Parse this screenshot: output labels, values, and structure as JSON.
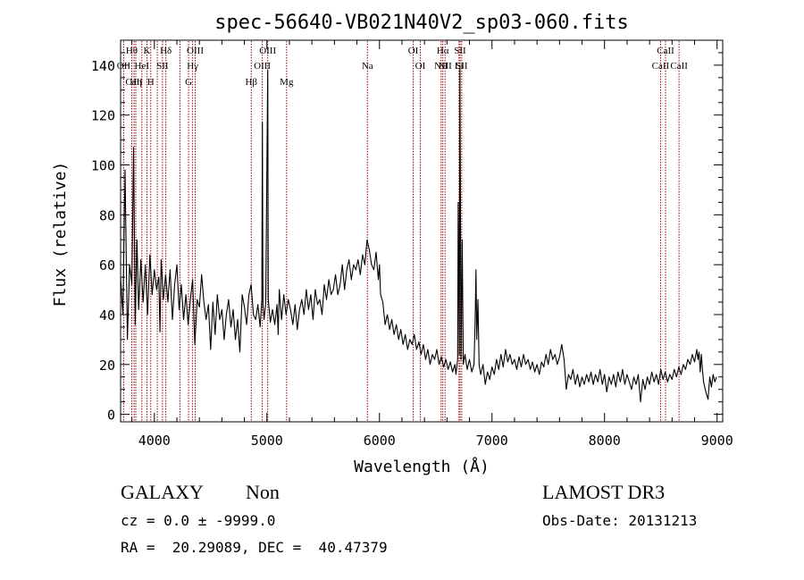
{
  "chart_data": {
    "type": "line",
    "title": "spec-56640-VB021N40V2_sp03-060.fits",
    "xlabel": "Wavelength (Å)",
    "ylabel": "Flux (relative)",
    "xlim": [
      3700,
      9050
    ],
    "ylim": [
      -3,
      150
    ],
    "xticks": [
      4000,
      5000,
      6000,
      7000,
      8000,
      9000
    ],
    "yticks": [
      0,
      20,
      40,
      60,
      80,
      100,
      120,
      140
    ],
    "line_color": "#000000",
    "marker_color": "#a00000",
    "series": [
      {
        "points": [
          [
            3700,
            55
          ],
          [
            3720,
            40
          ],
          [
            3740,
            98
          ],
          [
            3760,
            30
          ],
          [
            3780,
            60
          ],
          [
            3800,
            52
          ],
          [
            3815,
            107
          ],
          [
            3830,
            36
          ],
          [
            3845,
            70
          ],
          [
            3860,
            42
          ],
          [
            3880,
            62
          ],
          [
            3900,
            45
          ],
          [
            3920,
            60
          ],
          [
            3940,
            40
          ],
          [
            3960,
            64
          ],
          [
            3980,
            48
          ],
          [
            4000,
            58
          ],
          [
            4020,
            50
          ],
          [
            4040,
            55
          ],
          [
            4050,
            33
          ],
          [
            4060,
            62
          ],
          [
            4080,
            46
          ],
          [
            4100,
            56
          ],
          [
            4120,
            45
          ],
          [
            4140,
            58
          ],
          [
            4160,
            38
          ],
          [
            4180,
            52
          ],
          [
            4200,
            60
          ],
          [
            4220,
            42
          ],
          [
            4240,
            52
          ],
          [
            4260,
            38
          ],
          [
            4280,
            48
          ],
          [
            4300,
            36
          ],
          [
            4320,
            46
          ],
          [
            4340,
            54
          ],
          [
            4360,
            28
          ],
          [
            4380,
            46
          ],
          [
            4400,
            43
          ],
          [
            4420,
            56
          ],
          [
            4440,
            45
          ],
          [
            4460,
            38
          ],
          [
            4480,
            44
          ],
          [
            4500,
            26
          ],
          [
            4520,
            45
          ],
          [
            4540,
            32
          ],
          [
            4560,
            48
          ],
          [
            4580,
            38
          ],
          [
            4600,
            42
          ],
          [
            4620,
            30
          ],
          [
            4640,
            40
          ],
          [
            4660,
            46
          ],
          [
            4680,
            35
          ],
          [
            4700,
            42
          ],
          [
            4720,
            30
          ],
          [
            4740,
            38
          ],
          [
            4760,
            25
          ],
          [
            4780,
            48
          ],
          [
            4800,
            43
          ],
          [
            4820,
            36
          ],
          [
            4840,
            48
          ],
          [
            4860,
            52
          ],
          [
            4880,
            40
          ],
          [
            4900,
            38
          ],
          [
            4920,
            44
          ],
          [
            4940,
            35
          ],
          [
            4955,
            46
          ],
          [
            4960,
            117
          ],
          [
            4965,
            44
          ],
          [
            4975,
            38
          ],
          [
            4990,
            45
          ],
          [
            5007,
            138
          ],
          [
            5012,
            46
          ],
          [
            5030,
            37
          ],
          [
            5050,
            42
          ],
          [
            5070,
            36
          ],
          [
            5090,
            44
          ],
          [
            5100,
            32
          ],
          [
            5110,
            50
          ],
          [
            5130,
            38
          ],
          [
            5150,
            48
          ],
          [
            5170,
            40
          ],
          [
            5190,
            46
          ],
          [
            5210,
            42
          ],
          [
            5230,
            36
          ],
          [
            5250,
            44
          ],
          [
            5270,
            34
          ],
          [
            5290,
            42
          ],
          [
            5310,
            46
          ],
          [
            5330,
            40
          ],
          [
            5350,
            50
          ],
          [
            5370,
            42
          ],
          [
            5390,
            48
          ],
          [
            5410,
            38
          ],
          [
            5430,
            50
          ],
          [
            5450,
            44
          ],
          [
            5470,
            46
          ],
          [
            5490,
            40
          ],
          [
            5510,
            52
          ],
          [
            5530,
            46
          ],
          [
            5550,
            54
          ],
          [
            5570,
            48
          ],
          [
            5590,
            50
          ],
          [
            5610,
            56
          ],
          [
            5630,
            48
          ],
          [
            5650,
            52
          ],
          [
            5670,
            60
          ],
          [
            5690,
            50
          ],
          [
            5710,
            58
          ],
          [
            5730,
            62
          ],
          [
            5750,
            54
          ],
          [
            5770,
            60
          ],
          [
            5790,
            58
          ],
          [
            5810,
            62
          ],
          [
            5830,
            56
          ],
          [
            5850,
            64
          ],
          [
            5870,
            60
          ],
          [
            5890,
            70
          ],
          [
            5910,
            66
          ],
          [
            5930,
            60
          ],
          [
            5950,
            58
          ],
          [
            5970,
            65
          ],
          [
            5990,
            54
          ],
          [
            6000,
            60
          ],
          [
            6010,
            48
          ],
          [
            6030,
            45
          ],
          [
            6050,
            36
          ],
          [
            6070,
            40
          ],
          [
            6090,
            34
          ],
          [
            6110,
            38
          ],
          [
            6130,
            32
          ],
          [
            6150,
            36
          ],
          [
            6170,
            30
          ],
          [
            6190,
            34
          ],
          [
            6210,
            28
          ],
          [
            6230,
            32
          ],
          [
            6250,
            26
          ],
          [
            6270,
            30
          ],
          [
            6290,
            28
          ],
          [
            6310,
            32
          ],
          [
            6330,
            26
          ],
          [
            6350,
            29
          ],
          [
            6370,
            24
          ],
          [
            6390,
            28
          ],
          [
            6410,
            22
          ],
          [
            6430,
            26
          ],
          [
            6450,
            20
          ],
          [
            6470,
            24
          ],
          [
            6490,
            22
          ],
          [
            6510,
            26
          ],
          [
            6530,
            20
          ],
          [
            6550,
            23
          ],
          [
            6570,
            19
          ],
          [
            6590,
            22
          ],
          [
            6610,
            18
          ],
          [
            6630,
            21
          ],
          [
            6650,
            17
          ],
          [
            6670,
            20
          ],
          [
            6680,
            16
          ],
          [
            6695,
            22
          ],
          [
            6700,
            85
          ],
          [
            6710,
            24
          ],
          [
            6715,
            140
          ],
          [
            6725,
            22
          ],
          [
            6735,
            70
          ],
          [
            6745,
            20
          ],
          [
            6760,
            24
          ],
          [
            6780,
            18
          ],
          [
            6800,
            22
          ],
          [
            6820,
            17
          ],
          [
            6840,
            20
          ],
          [
            6850,
            36
          ],
          [
            6858,
            58
          ],
          [
            6865,
            30
          ],
          [
            6875,
            46
          ],
          [
            6885,
            20
          ],
          [
            6900,
            16
          ],
          [
            6920,
            20
          ],
          [
            6940,
            12
          ],
          [
            6960,
            17
          ],
          [
            6980,
            14
          ],
          [
            7000,
            19
          ],
          [
            7020,
            16
          ],
          [
            7040,
            22
          ],
          [
            7060,
            18
          ],
          [
            7080,
            24
          ],
          [
            7100,
            19
          ],
          [
            7120,
            26
          ],
          [
            7140,
            21
          ],
          [
            7160,
            24
          ],
          [
            7180,
            20
          ],
          [
            7200,
            22
          ],
          [
            7220,
            18
          ],
          [
            7240,
            23
          ],
          [
            7260,
            19
          ],
          [
            7280,
            24
          ],
          [
            7300,
            20
          ],
          [
            7320,
            22
          ],
          [
            7340,
            18
          ],
          [
            7360,
            21
          ],
          [
            7380,
            17
          ],
          [
            7400,
            20
          ],
          [
            7420,
            16
          ],
          [
            7440,
            21
          ],
          [
            7460,
            19
          ],
          [
            7480,
            24
          ],
          [
            7500,
            20
          ],
          [
            7520,
            26
          ],
          [
            7540,
            22
          ],
          [
            7560,
            24
          ],
          [
            7580,
            20
          ],
          [
            7600,
            23
          ],
          [
            7620,
            28
          ],
          [
            7640,
            22
          ],
          [
            7660,
            10
          ],
          [
            7680,
            16
          ],
          [
            7700,
            14
          ],
          [
            7720,
            18
          ],
          [
            7740,
            12
          ],
          [
            7760,
            16
          ],
          [
            7780,
            11
          ],
          [
            7800,
            15
          ],
          [
            7820,
            12
          ],
          [
            7840,
            16
          ],
          [
            7860,
            13
          ],
          [
            7880,
            17
          ],
          [
            7900,
            12
          ],
          [
            7920,
            16
          ],
          [
            7940,
            13
          ],
          [
            7960,
            18
          ],
          [
            7980,
            12
          ],
          [
            8000,
            16
          ],
          [
            8020,
            9
          ],
          [
            8040,
            15
          ],
          [
            8060,
            12
          ],
          [
            8080,
            16
          ],
          [
            8100,
            11
          ],
          [
            8120,
            17
          ],
          [
            8140,
            13
          ],
          [
            8160,
            18
          ],
          [
            8180,
            12
          ],
          [
            8200,
            16
          ],
          [
            8220,
            13
          ],
          [
            8240,
            10
          ],
          [
            8260,
            15
          ],
          [
            8280,
            12
          ],
          [
            8300,
            16
          ],
          [
            8320,
            5
          ],
          [
            8340,
            14
          ],
          [
            8360,
            10
          ],
          [
            8380,
            15
          ],
          [
            8400,
            12
          ],
          [
            8420,
            17
          ],
          [
            8440,
            13
          ],
          [
            8460,
            16
          ],
          [
            8480,
            12
          ],
          [
            8500,
            18
          ],
          [
            8520,
            14
          ],
          [
            8540,
            17
          ],
          [
            8560,
            13
          ],
          [
            8580,
            16
          ],
          [
            8600,
            14
          ],
          [
            8620,
            18
          ],
          [
            8640,
            15
          ],
          [
            8660,
            19
          ],
          [
            8680,
            16
          ],
          [
            8700,
            20
          ],
          [
            8720,
            18
          ],
          [
            8740,
            22
          ],
          [
            8760,
            20
          ],
          [
            8780,
            24
          ],
          [
            8800,
            21
          ],
          [
            8820,
            26
          ],
          [
            8830,
            22
          ],
          [
            8840,
            25
          ],
          [
            8850,
            17
          ],
          [
            8860,
            24
          ],
          [
            8870,
            18
          ],
          [
            8880,
            13
          ],
          [
            8890,
            11
          ],
          [
            8900,
            9
          ],
          [
            8920,
            6
          ],
          [
            8935,
            15
          ],
          [
            8950,
            11
          ],
          [
            8965,
            16
          ],
          [
            8980,
            13
          ],
          [
            8995,
            15
          ]
        ]
      }
    ],
    "line_markers": [
      {
        "wl": 3727,
        "label": "OII",
        "row": 2
      },
      {
        "wl": 3799,
        "label": "Hθ",
        "row": 0
      },
      {
        "wl": 3820,
        "label": "CaII",
        "row": 3
      },
      {
        "wl": 3835,
        "label": "Hη",
        "row": 3
      },
      {
        "wl": 3889,
        "label": "HeI",
        "row": 1
      },
      {
        "wl": 3934,
        "label": "K",
        "row": 0
      },
      {
        "wl": 3968,
        "label": "H",
        "row": 3
      },
      {
        "wl": 4026,
        "label": "",
        "row": -1
      },
      {
        "wl": 4072,
        "label": "SII",
        "row": 1
      },
      {
        "wl": 4102,
        "label": "Hδ",
        "row": 0
      },
      {
        "wl": 4227,
        "label": "",
        "row": -1
      },
      {
        "wl": 4304,
        "label": "G",
        "row": 3
      },
      {
        "wl": 4340,
        "label": "Hγ",
        "row": 2
      },
      {
        "wl": 4363,
        "label": "OIII",
        "row": 0
      },
      {
        "wl": 4861,
        "label": "Hβ",
        "row": 3
      },
      {
        "wl": 4959,
        "label": "OIII",
        "row": 1
      },
      {
        "wl": 5007,
        "label": "OIII",
        "row": 0
      },
      {
        "wl": 5175,
        "label": "Mg",
        "row": 3
      },
      {
        "wl": 5893,
        "label": "Na",
        "row": 1
      },
      {
        "wl": 6300,
        "label": "OI",
        "row": 0
      },
      {
        "wl": 6363,
        "label": "OI",
        "row": 2
      },
      {
        "wl": 6548,
        "label": "NII",
        "row": 1
      },
      {
        "wl": 6563,
        "label": "Hα",
        "row": 0
      },
      {
        "wl": 6583,
        "label": "NII",
        "row": 2
      },
      {
        "wl": 6707,
        "label": "Li",
        "row": 1
      },
      {
        "wl": 6716,
        "label": "SII",
        "row": 0
      },
      {
        "wl": 6731,
        "label": "SII",
        "row": 2
      },
      {
        "wl": 8498,
        "label": "CaII",
        "row": 1
      },
      {
        "wl": 8542,
        "label": "CaII",
        "row": 0
      },
      {
        "wl": 8662,
        "label": "CaII",
        "row": 2
      }
    ]
  },
  "info": {
    "object_class": "GALAXY",
    "subclass": "Non",
    "survey": "LAMOST DR3",
    "cz_line": "cz = 0.0 ± -9999.0",
    "obs_date_line": "Obs-Date: 20131213",
    "coords_line": "RA =  20.29089, DEC =  40.47379"
  }
}
